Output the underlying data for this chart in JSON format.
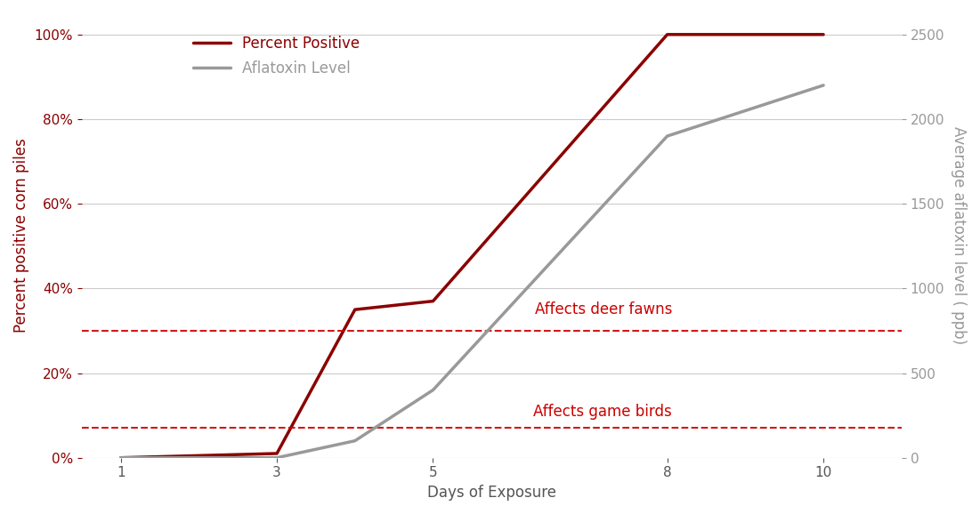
{
  "x": [
    1,
    3,
    4,
    5,
    8,
    10
  ],
  "percent_positive": [
    0.0,
    0.01,
    0.35,
    0.37,
    1.0,
    1.0
  ],
  "aflatoxin_level": [
    0,
    0,
    100,
    400,
    1900,
    2200
  ],
  "percent_color": "#8B0000",
  "aflatoxin_color": "#999999",
  "dashed_line_color": "#CC0000",
  "dashed_line_1_pct": 0.3,
  "dashed_line_2_pct": 0.07,
  "label_deer": "Affects deer fawns",
  "label_birds": "Affects game birds",
  "legend_percent": "Percent Positive",
  "legend_aflatoxin": "Aflatoxin Level",
  "xlabel": "Days of Exposure",
  "ylabel_left": "Percent positive corn piles",
  "ylabel_right": "Average aflatoxin level ( ppb)",
  "xlim": [
    0.5,
    11
  ],
  "ylim_left": [
    0,
    1.05
  ],
  "ylim_right": [
    0,
    2625
  ],
  "xticks": [
    1,
    3,
    5,
    8,
    10
  ],
  "yticks_left": [
    0.0,
    0.2,
    0.4,
    0.6,
    0.8,
    1.0
  ],
  "yticks_right": [
    0,
    500,
    1000,
    1500,
    2000,
    2500
  ],
  "bg_color": "#ffffff",
  "line_width": 2.5,
  "font_size_labels": 12,
  "font_size_ticks": 11,
  "font_size_legend": 12,
  "font_size_annotation": 12
}
